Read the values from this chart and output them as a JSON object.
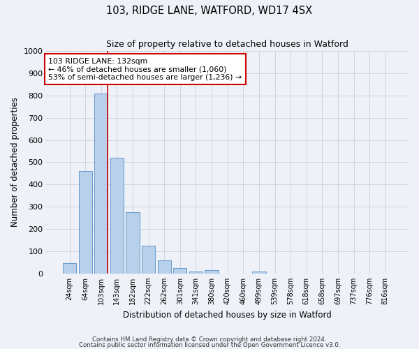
{
  "title": "103, RIDGE LANE, WATFORD, WD17 4SX",
  "subtitle": "Size of property relative to detached houses in Watford",
  "xlabel": "Distribution of detached houses by size in Watford",
  "ylabel": "Number of detached properties",
  "categories": [
    "24sqm",
    "64sqm",
    "103sqm",
    "143sqm",
    "182sqm",
    "222sqm",
    "262sqm",
    "301sqm",
    "341sqm",
    "380sqm",
    "420sqm",
    "460sqm",
    "499sqm",
    "539sqm",
    "578sqm",
    "618sqm",
    "658sqm",
    "697sqm",
    "737sqm",
    "776sqm",
    "816sqm"
  ],
  "values": [
    45,
    460,
    810,
    520,
    275,
    125,
    60,
    25,
    10,
    15,
    0,
    0,
    10,
    0,
    0,
    0,
    0,
    0,
    0,
    0,
    0
  ],
  "bar_color": "#b8d0ea",
  "bar_edge_color": "#6699cc",
  "vline_x_index": 2,
  "vline_color": "#cc0000",
  "annotation_title": "103 RIDGE LANE: 132sqm",
  "annotation_line1": "← 46% of detached houses are smaller (1,060)",
  "annotation_line2": "53% of semi-detached houses are larger (1,236) →",
  "annotation_box_facecolor": "#ffffff",
  "annotation_box_edgecolor": "#cc0000",
  "ylim": [
    0,
    1000
  ],
  "yticks": [
    0,
    100,
    200,
    300,
    400,
    500,
    600,
    700,
    800,
    900,
    1000
  ],
  "footnote1": "Contains HM Land Registry data © Crown copyright and database right 2024.",
  "footnote2": "Contains public sector information licensed under the Open Government Licence v3.0.",
  "bg_color": "#eef2f8",
  "plot_bg_color": "#eef2f8",
  "grid_color": "#c8d0dc"
}
